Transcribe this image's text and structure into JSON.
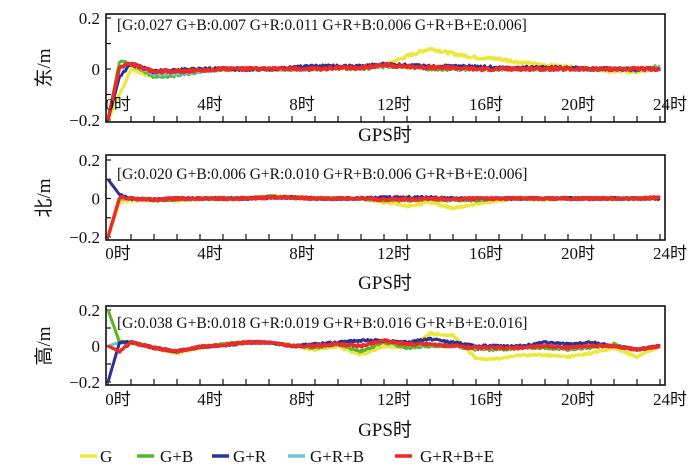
{
  "chart_data": [
    {
      "type": "line",
      "ylabel": "东/m",
      "xlabel": "GPS时",
      "annotation": "[G:0.027 G+B:0.007 G+R:0.011 G+R+B:0.006 G+R+B+E:0.006]",
      "ylim": [
        -0.2,
        0.2
      ],
      "yticks": [
        "0.2",
        "0",
        "−0.2"
      ],
      "yticks_values": [
        0.2,
        0,
        -0.2
      ],
      "xlim": [
        0,
        24
      ],
      "xticks": [
        "0时",
        "4时",
        "8时",
        "12时",
        "16时",
        "20时",
        "24时"
      ],
      "xticks_values": [
        0,
        4,
        8,
        12,
        16,
        20,
        24
      ],
      "x": [
        0,
        0.5,
        1,
        2,
        3,
        4,
        5,
        6,
        7,
        8,
        9,
        10,
        11,
        12,
        13,
        14,
        15,
        16,
        17,
        18,
        19,
        20,
        21,
        22,
        23,
        24
      ],
      "series": [
        {
          "name": "G",
          "values": [
            -0.2,
            -0.1,
            0.0,
            -0.03,
            -0.015,
            0,
            0,
            0,
            0,
            0,
            0,
            0.005,
            0.01,
            0.015,
            0.05,
            0.08,
            0.06,
            0.045,
            0.04,
            0.025,
            0.015,
            0.01,
            0,
            -0.01,
            -0.01,
            0.005
          ]
        },
        {
          "name": "G+B",
          "values": [
            -0.2,
            0.03,
            0.02,
            -0.03,
            -0.025,
            -0.01,
            0,
            0,
            0,
            0,
            0,
            0.005,
            0,
            0.01,
            0.01,
            0,
            0,
            0,
            0,
            0,
            0,
            0,
            0,
            0,
            -0.005,
            0.01
          ]
        },
        {
          "name": "G+R",
          "values": [
            -0.2,
            -0.03,
            0.02,
            -0.01,
            -0.005,
            0,
            0,
            0,
            0,
            0.005,
            0.01,
            0.01,
            0.01,
            0.02,
            0.015,
            0.01,
            0.01,
            0.01,
            0.005,
            0.005,
            0.005,
            0.005,
            0,
            0,
            0,
            0
          ]
        },
        {
          "name": "G+R+B",
          "values": [
            -0.2,
            0.0,
            0.02,
            -0.02,
            -0.02,
            -0.01,
            0,
            0,
            0,
            0,
            0,
            0.005,
            0.005,
            0.015,
            0.01,
            0.005,
            0.005,
            0,
            0,
            0,
            0,
            0,
            0,
            0,
            0,
            0
          ]
        },
        {
          "name": "G+R+B+E",
          "values": [
            -0.2,
            0.01,
            0.02,
            -0.01,
            -0.01,
            -0.005,
            0,
            0,
            0,
            0,
            0,
            0.005,
            0.005,
            0.015,
            0.01,
            0.005,
            0.005,
            0,
            0,
            0,
            0,
            0,
            0,
            0,
            0,
            0
          ]
        }
      ]
    },
    {
      "type": "line",
      "ylabel": "北/m",
      "xlabel": "GPS时",
      "annotation": "[G:0.020 G+B:0.006 G+R:0.010 G+R+B:0.006 G+R+B+E:0.006]",
      "ylim": [
        -0.2,
        0.2
      ],
      "yticks": [
        "0.2",
        "0",
        "−0.2"
      ],
      "yticks_values": [
        0.2,
        0,
        -0.2
      ],
      "xlim": [
        0,
        24
      ],
      "xticks": [
        "0时",
        "4时",
        "8时",
        "12时",
        "16时",
        "20时",
        "24时"
      ],
      "xticks_values": [
        0,
        4,
        8,
        12,
        16,
        20,
        24
      ],
      "x": [
        0,
        0.5,
        1,
        2,
        3,
        4,
        5,
        6,
        7,
        8,
        9,
        10,
        11,
        12,
        13,
        14,
        15,
        16,
        17,
        18,
        19,
        20,
        21,
        22,
        23,
        24
      ],
      "series": [
        {
          "name": "G",
          "values": [
            -0.2,
            -0.02,
            -0.01,
            -0.01,
            -0.01,
            0,
            0,
            0,
            0.01,
            0.01,
            0,
            0,
            0,
            -0.02,
            -0.04,
            -0.02,
            -0.05,
            -0.03,
            -0.01,
            0,
            -0.005,
            0,
            0,
            0,
            0,
            0
          ]
        },
        {
          "name": "G+B",
          "values": [
            -0.2,
            0.0,
            0,
            -0.01,
            -0.005,
            0,
            0,
            0,
            0.01,
            0.005,
            0,
            0,
            0,
            -0.01,
            -0.01,
            -0.005,
            -0.01,
            -0.01,
            0,
            0,
            0,
            0,
            0,
            0,
            0,
            0
          ]
        },
        {
          "name": "G+R",
          "values": [
            0.1,
            0.02,
            0,
            -0.005,
            0,
            0,
            0,
            0,
            0.005,
            0.005,
            0,
            0,
            0,
            0.005,
            0.005,
            0.005,
            0,
            0,
            0,
            0,
            0,
            0,
            0,
            0,
            0,
            0
          ]
        },
        {
          "name": "G+R+B",
          "values": [
            -0.2,
            0.0,
            0,
            -0.005,
            0,
            0,
            0,
            0,
            0.005,
            0.005,
            0,
            0,
            0,
            -0.005,
            -0.005,
            0,
            -0.005,
            0,
            0,
            0,
            0,
            0,
            0,
            0,
            0,
            0
          ]
        },
        {
          "name": "G+R+B+E",
          "values": [
            -0.2,
            0.005,
            0,
            -0.005,
            0,
            0,
            0,
            0,
            0.005,
            0.005,
            0,
            0,
            0,
            -0.005,
            -0.005,
            0,
            -0.005,
            0,
            0,
            0,
            0,
            0,
            0,
            0,
            0,
            0.005
          ]
        }
      ]
    },
    {
      "type": "line",
      "ylabel": "高/m",
      "xlabel": "GPS时",
      "annotation": "[G:0.038 G+B:0.018 G+R:0.019 G+R+B:0.016 G+R+B+E:0.016]",
      "ylim": [
        -0.2,
        0.2
      ],
      "yticks": [
        "0.2",
        "0",
        "−0.2"
      ],
      "yticks_values": [
        0.2,
        0,
        -0.2
      ],
      "xlim": [
        0,
        24
      ],
      "xticks": [
        "0时",
        "4时",
        "8时",
        "12时",
        "16时",
        "20时",
        "24时"
      ],
      "xticks_values": [
        0,
        4,
        8,
        12,
        16,
        20,
        24
      ],
      "x": [
        0,
        0.5,
        1,
        2,
        3,
        4,
        5,
        6,
        7,
        8,
        9,
        10,
        11,
        12,
        13,
        14,
        15,
        16,
        17,
        18,
        19,
        20,
        21,
        22,
        23,
        24
      ],
      "series": [
        {
          "name": "G",
          "values": [
            0.2,
            0.03,
            0.02,
            -0.01,
            -0.04,
            -0.01,
            0.01,
            0.02,
            0.02,
            0,
            -0.02,
            0,
            -0.05,
            0.0,
            -0.01,
            0.07,
            0.06,
            -0.07,
            -0.07,
            -0.05,
            -0.05,
            -0.06,
            -0.04,
            -0.01,
            -0.06,
            0
          ]
        },
        {
          "name": "G+B",
          "values": [
            0.2,
            0.02,
            0.02,
            -0.01,
            -0.03,
            -0.005,
            0.01,
            0.02,
            0.02,
            0,
            -0.01,
            0.01,
            -0.03,
            0.02,
            -0.01,
            0.0,
            0.0,
            -0.02,
            -0.02,
            -0.01,
            -0.01,
            -0.02,
            -0.01,
            0.01,
            -0.02,
            0
          ]
        },
        {
          "name": "G+R",
          "values": [
            -0.2,
            0.02,
            0.02,
            -0.01,
            -0.03,
            -0.005,
            0.0,
            0.02,
            0.02,
            0,
            0.01,
            0.02,
            0.03,
            0.03,
            0.02,
            0.04,
            0.02,
            0,
            0,
            0,
            0.02,
            0.01,
            0.02,
            0,
            -0.02,
            0
          ]
        },
        {
          "name": "G+R+B",
          "values": [
            0.0,
            0.02,
            0.02,
            -0.01,
            -0.03,
            -0.005,
            0.005,
            0.02,
            0.02,
            0,
            0,
            0.01,
            0.0,
            0.03,
            0.01,
            0.01,
            0.0,
            -0.01,
            -0.01,
            -0.01,
            0,
            -0.01,
            0,
            0,
            -0.02,
            0
          ]
        },
        {
          "name": "G+R+B+E",
          "values": [
            0.0,
            -0.03,
            0.02,
            -0.01,
            -0.03,
            -0.005,
            0.005,
            0.02,
            0.02,
            0,
            0,
            0.01,
            0.0,
            0.03,
            0.01,
            0.01,
            0.0,
            -0.01,
            -0.01,
            -0.01,
            0,
            -0.01,
            0,
            0,
            -0.02,
            0
          ]
        }
      ]
    }
  ],
  "legend": {
    "placement": "bottom",
    "items": [
      {
        "label": "G",
        "color": "#ece83a"
      },
      {
        "label": "G+B",
        "color": "#5bb332"
      },
      {
        "label": "G+R",
        "color": "#2e3192"
      },
      {
        "label": "G+R+B",
        "color": "#6cc6d2"
      },
      {
        "label": "G+R+B+E",
        "color": "#ee2a24"
      }
    ]
  }
}
